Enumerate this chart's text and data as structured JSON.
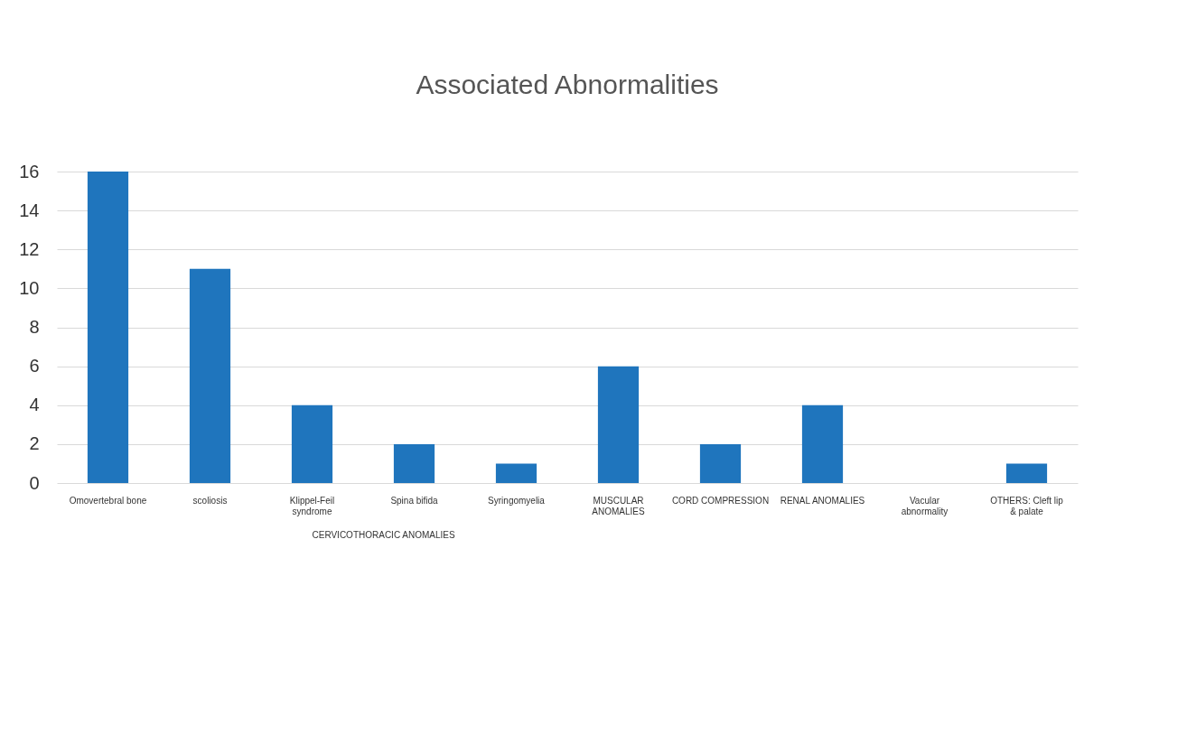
{
  "chart_data": {
    "type": "bar",
    "title": "Associated Abnormalities",
    "categories": [
      "Omovertebral bone",
      "scoliosis",
      "Klippel-Feil syndrome",
      "Spina bifida",
      "Syringomyelia",
      "MUSCULAR ANOMALIES",
      "CORD COMPRESSION",
      "RENAL ANOMALIES",
      "Vacular abnormality",
      "OTHERS: Cleft lip & palate"
    ],
    "values": [
      16,
      11,
      4,
      2,
      1,
      6,
      2,
      4,
      0,
      1
    ],
    "color": "#1f75bd",
    "ylim": [
      0,
      16
    ],
    "yticks": [
      0,
      2,
      4,
      6,
      8,
      10,
      12,
      14,
      16
    ],
    "grid": true,
    "annotations": [
      "CERVICOTHORACIC ANOMALIES"
    ]
  }
}
